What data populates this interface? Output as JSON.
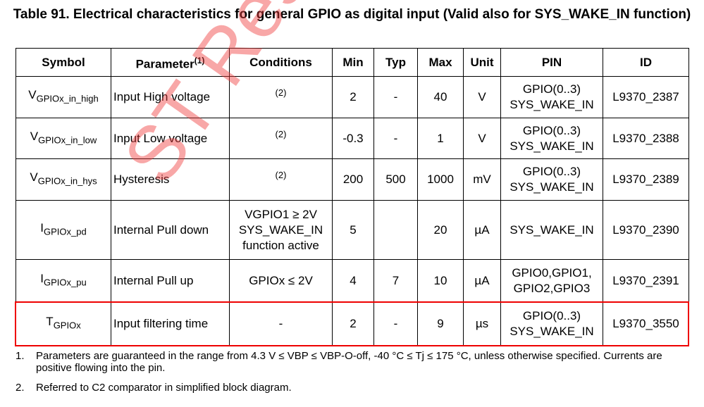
{
  "title": "Table 91. Electrical characteristics for general GPIO as digital input (Valid also for SYS_WAKE_IN function)",
  "watermark": "ST Res",
  "table": {
    "header": [
      {
        "text": "Symbol"
      },
      {
        "text": "Parameter",
        "sup": "(1)"
      },
      {
        "text": "Conditions"
      },
      {
        "text": "Min"
      },
      {
        "text": "Typ"
      },
      {
        "text": "Max"
      },
      {
        "text": "Unit"
      },
      {
        "text": "PIN"
      },
      {
        "text": "ID"
      }
    ],
    "rows": [
      {
        "symbol": {
          "main": "V",
          "sub": "GPIOx_in_high"
        },
        "parameter": "Input High voltage",
        "conditions": {
          "note": "(2)"
        },
        "min": "2",
        "typ": "-",
        "max": "40",
        "unit": "V",
        "pin": [
          "GPIO(0..3)",
          "SYS_WAKE_IN"
        ],
        "id": "L9370_2387"
      },
      {
        "symbol": {
          "main": "V",
          "sub": "GPIOx_in_low"
        },
        "parameter": "Input Low voltage",
        "conditions": {
          "note": "(2)"
        },
        "min": "-0.3",
        "typ": "-",
        "max": "1",
        "unit": "V",
        "pin": [
          "GPIO(0..3)",
          "SYS_WAKE_IN"
        ],
        "id": "L9370_2388"
      },
      {
        "symbol": {
          "main": "V",
          "sub": "GPIOx_in_hys"
        },
        "parameter": "Hysteresis",
        "conditions": {
          "note": "(2)"
        },
        "min": "200",
        "typ": "500",
        "max": "1000",
        "unit": "mV",
        "pin": [
          "GPIO(0..3)",
          "SYS_WAKE_IN"
        ],
        "id": "L9370_2389"
      },
      {
        "symbol": {
          "main": "I",
          "sub": "GPIOx_pd"
        },
        "parameter": "Internal Pull down",
        "conditions": {
          "lines": [
            "VGPIO1 ≥ 2V",
            "SYS_WAKE_IN",
            "function active"
          ]
        },
        "min": "5",
        "typ": "",
        "max": "20",
        "unit": "µA",
        "pin": [
          "SYS_WAKE_IN"
        ],
        "id": "L9370_2390"
      },
      {
        "symbol": {
          "main": "I",
          "sub": "GPIOx_pu"
        },
        "parameter": "Internal Pull up",
        "conditions": {
          "lines": [
            "GPIOx ≤ 2V"
          ]
        },
        "min": "4",
        "typ": "7",
        "max": "10",
        "unit": "µA",
        "pin": [
          "GPIO0,GPIO1,",
          "GPIO2,GPIO3"
        ],
        "id": "L9370_2391"
      },
      {
        "symbol": {
          "main": "T",
          "sub": "GPIOx"
        },
        "parameter": "Input filtering time",
        "conditions": {
          "lines": [
            "-"
          ]
        },
        "min": "2",
        "typ": "-",
        "max": "9",
        "unit": "µs",
        "pin": [
          "GPIO(0..3)",
          "SYS_WAKE_IN"
        ],
        "id": "L9370_3550"
      }
    ]
  },
  "footnotes": [
    {
      "number": "1.",
      "text": "Parameters are guaranteed in the range from 4.3 V ≤ VBP ≤ VBP-O-off, -40 °C ≤ Tj ≤ 175 °C, unless otherwise specified. Currents are positive flowing into the pin."
    },
    {
      "number": "2.",
      "text": "Referred to C2 comparator in simplified block diagram."
    }
  ]
}
